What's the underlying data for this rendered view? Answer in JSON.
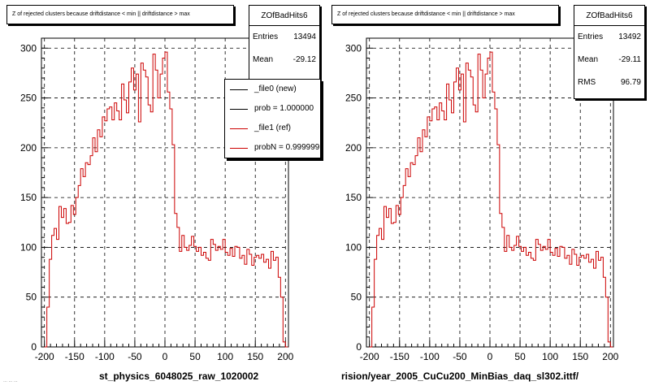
{
  "chart_data": [
    {
      "type": "bar",
      "histogram_title": "Z of rejected clusters because driftdistance < min || driftdistance > max",
      "x_axis_title": "st_physics_6048025_raw_1020002",
      "xlim": [
        -205,
        205
      ],
      "ylim": [
        0,
        310
      ],
      "xticks": [
        "-200",
        "-150",
        "-100",
        "-50",
        "0",
        "50",
        "100",
        "150",
        "200"
      ],
      "yticks": [
        "0",
        "50",
        "100",
        "150",
        "200",
        "250",
        "300"
      ],
      "grid": true,
      "bin_width": 4,
      "x_start": -200,
      "values": [
        0,
        40,
        88,
        112,
        119,
        108,
        141,
        130,
        139,
        124,
        125,
        142,
        133,
        150,
        162,
        179,
        171,
        185,
        183,
        192,
        210,
        196,
        218,
        211,
        231,
        227,
        239,
        241,
        228,
        245,
        237,
        228,
        264,
        248,
        235,
        266,
        280,
        258,
        274,
        226,
        285,
        278,
        271,
        243,
        236,
        294,
        278,
        250,
        274,
        290,
        296,
        256,
        239,
        203,
        134,
        120,
        96,
        112,
        100,
        97,
        102,
        111,
        101,
        96,
        100,
        92,
        95,
        89,
        87,
        108,
        103,
        97,
        101,
        98,
        108,
        95,
        92,
        99,
        91,
        101,
        100,
        89,
        92,
        83,
        98,
        93,
        82,
        90,
        92,
        89,
        93,
        85,
        88,
        79,
        96,
        87,
        90,
        70,
        50,
        5,
        0
      ],
      "line_color": "#cc0000",
      "stats": {
        "name": "ZOfBadHits6",
        "entries_label": "Entries",
        "entries": "13494",
        "mean_label": "Mean",
        "mean": "-29.12"
      },
      "legend": [
        {
          "label": "_file0 (new)",
          "color": "#000000"
        },
        {
          "label": "prob = 1.000000",
          "color": "#000000"
        },
        {
          "label": "_file1 (ref)",
          "color": "#cc0000"
        },
        {
          "label": "probN = 0.999999",
          "color": "#cc0000"
        }
      ]
    },
    {
      "type": "bar",
      "histogram_title": "Z of rejected clusters because driftdistance < min || driftdistance > max",
      "x_axis_title": "rision/year_2005_CuCu200_MinBias_daq_sl302.ittf/",
      "xlim": [
        -205,
        205
      ],
      "ylim": [
        0,
        310
      ],
      "xticks": [
        "-200",
        "-150",
        "-100",
        "-50",
        "0",
        "50",
        "100",
        "150",
        "200"
      ],
      "yticks": [
        "0",
        "50",
        "100",
        "150",
        "200",
        "250",
        "300"
      ],
      "grid": true,
      "bin_width": 4,
      "x_start": -200,
      "values": [
        0,
        40,
        88,
        112,
        119,
        108,
        141,
        130,
        139,
        124,
        125,
        142,
        133,
        150,
        162,
        179,
        171,
        185,
        183,
        192,
        210,
        196,
        218,
        211,
        231,
        227,
        239,
        241,
        228,
        245,
        237,
        228,
        264,
        248,
        235,
        266,
        280,
        258,
        274,
        226,
        285,
        278,
        271,
        243,
        236,
        294,
        278,
        250,
        274,
        290,
        296,
        256,
        239,
        203,
        134,
        120,
        96,
        112,
        100,
        97,
        102,
        111,
        101,
        96,
        100,
        92,
        95,
        89,
        87,
        108,
        103,
        97,
        101,
        98,
        108,
        95,
        92,
        99,
        91,
        101,
        100,
        89,
        92,
        83,
        98,
        93,
        82,
        90,
        92,
        89,
        93,
        85,
        88,
        79,
        96,
        87,
        90,
        70,
        50,
        5,
        0
      ],
      "line_color": "#cc0000",
      "stats": {
        "name": "ZOfBadHits6",
        "entries_label": "Entries",
        "entries": "13492",
        "mean_label": "Mean",
        "mean": "-29.11",
        "rms_label": "RMS",
        "rms": "96.79"
      }
    }
  ],
  "footer_text": "… … …"
}
